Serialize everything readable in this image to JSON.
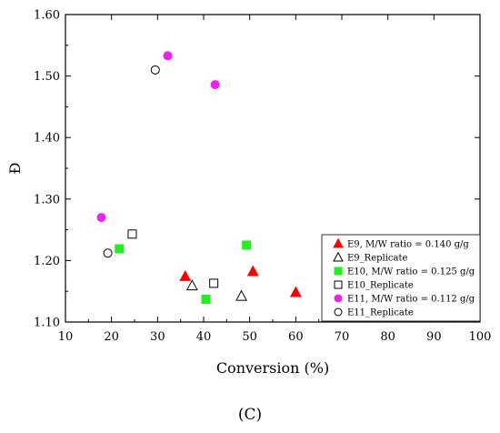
{
  "chart_data": {
    "type": "scatter",
    "xlabel": "Conversion (%)",
    "ylabel": "Đ",
    "xlim": [
      10,
      100
    ],
    "ylim": [
      1.1,
      1.6
    ],
    "x_ticks": [
      "10",
      "20",
      "30",
      "40",
      "50",
      "60",
      "70",
      "80",
      "90",
      "100"
    ],
    "y_ticks": [
      "1.10",
      "1.20",
      "1.30",
      "1.40",
      "1.50",
      "1.60"
    ],
    "grid": false,
    "legend_position": "bottom-right",
    "panel_label": "(C)",
    "series": [
      {
        "name": "E9, M/W ratio = 0.140 g/g",
        "marker": "triangle",
        "filled": true,
        "color": "#ff0000",
        "points": [
          [
            36.0,
            1.174
          ],
          [
            50.7,
            1.182
          ],
          [
            60.0,
            1.148
          ]
        ]
      },
      {
        "name": "E9_Replicate",
        "marker": "triangle",
        "filled": false,
        "color": "#000000",
        "points": [
          [
            37.5,
            1.159
          ],
          [
            48.2,
            1.142
          ]
        ]
      },
      {
        "name": "E10, M/W ratio = 0.125 g/g",
        "marker": "square",
        "filled": true,
        "color": "#22ee22",
        "points": [
          [
            21.7,
            1.219
          ],
          [
            40.5,
            1.137
          ],
          [
            49.3,
            1.225
          ]
        ]
      },
      {
        "name": "E10_Replicate",
        "marker": "square",
        "filled": false,
        "color": "#000000",
        "points": [
          [
            24.5,
            1.243
          ],
          [
            42.2,
            1.163
          ]
        ]
      },
      {
        "name": "E11, M/W ratio = 0.112 g/g",
        "marker": "circle",
        "filled": true,
        "color": "#ee22ee",
        "points": [
          [
            17.8,
            1.27
          ],
          [
            32.2,
            1.533
          ],
          [
            42.5,
            1.486
          ]
        ]
      },
      {
        "name": "E11_Replicate",
        "marker": "circle",
        "filled": false,
        "color": "#000000",
        "points": [
          [
            19.2,
            1.212
          ],
          [
            29.5,
            1.51
          ]
        ]
      }
    ]
  }
}
